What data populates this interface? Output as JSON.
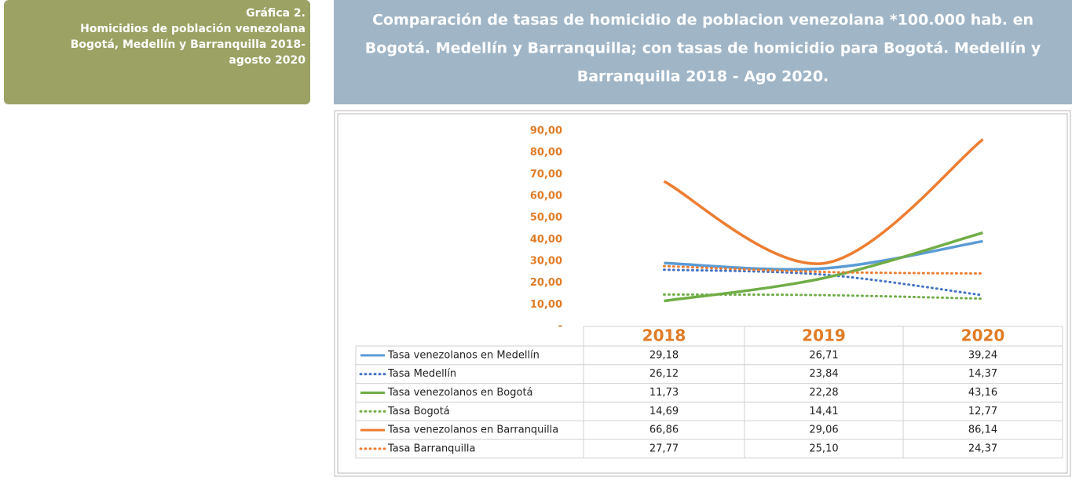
{
  "side_box": {
    "lines": [
      "Gráfica 2.",
      "Homicidios de población venezolana",
      "Bogotá, Medellín y Barranquilla 2018-",
      "agosto 2020"
    ]
  },
  "chart_data": {
    "type": "line",
    "title_lines": [
      "Comparación de tasas de homicidio de poblacion venezolana *100.000 hab. en",
      "Bogotá. Medellín y Barranquilla; con tasas de homicidio para Bogotá. Medellín y",
      "Barranquilla 2018 - Ago 2020."
    ],
    "categories": [
      "2018",
      "2019",
      "2020"
    ],
    "ylim": [
      0,
      90
    ],
    "yticks": [
      {
        "value": 0,
        "label": "-"
      },
      {
        "value": 10,
        "label": "10,00"
      },
      {
        "value": 20,
        "label": "20,00"
      },
      {
        "value": 30,
        "label": "30,00"
      },
      {
        "value": 40,
        "label": "40,00"
      },
      {
        "value": 50,
        "label": "50,00"
      },
      {
        "value": 60,
        "label": "60,00"
      },
      {
        "value": 70,
        "label": "70,00"
      },
      {
        "value": 80,
        "label": "80,00"
      },
      {
        "value": 90,
        "label": "90,00"
      }
    ],
    "smooth": true,
    "series": [
      {
        "name": "Tasa venezolanos en Medellín",
        "color": "#5b9bd5",
        "style": "solid",
        "values": [
          29.18,
          26.71,
          39.24
        ],
        "value_labels": [
          "29,18",
          "26,71",
          "39,24"
        ]
      },
      {
        "name": "Tasa Medellín",
        "color": "#4472c4",
        "style": "dotted",
        "values": [
          26.12,
          23.84,
          14.37
        ],
        "value_labels": [
          "26,12",
          "23,84",
          "14,37"
        ]
      },
      {
        "name": "Tasa venezolanos en Bogotá",
        "color": "#70ad47",
        "style": "solid",
        "values": [
          11.73,
          22.28,
          43.16
        ],
        "value_labels": [
          "11,73",
          "22,28",
          "43,16"
        ]
      },
      {
        "name": "Tasa Bogotá",
        "color": "#70ad47",
        "style": "dotted",
        "values": [
          14.69,
          14.41,
          12.77
        ],
        "value_labels": [
          "14,69",
          "14,41",
          "12,77"
        ]
      },
      {
        "name": "Tasa venezolanos en Barranquilla",
        "color": "#ed7d31",
        "style": "solid",
        "values": [
          66.86,
          29.06,
          86.14
        ],
        "value_labels": [
          "66,86",
          "29,06",
          "86,14"
        ]
      },
      {
        "name": "Tasa Barranquilla",
        "color": "#ed7d31",
        "style": "dotted",
        "values": [
          27.77,
          25.1,
          24.37
        ],
        "value_labels": [
          "27,77",
          "25,10",
          "24,37"
        ]
      }
    ]
  }
}
